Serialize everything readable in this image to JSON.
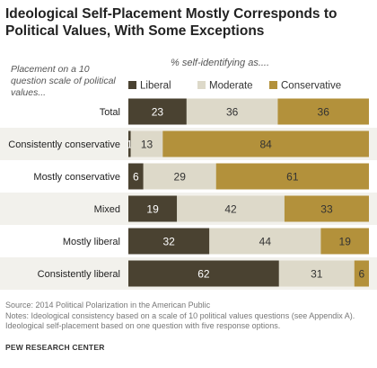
{
  "title": "Ideological Self-Placement Mostly Corresponds to Political Values, With Some Exceptions",
  "row_note": "Placement on a 10 question scale of political values...",
  "col_note": "% self-identifying as....",
  "source": "Source: 2014 Political Polarization in the American Public",
  "notes": "Notes: Ideological consistency based on a scale of 10 political values questions (see Appendix A). Ideological self-placement based on one question with five response options.",
  "footer": "PEW RESEARCH CENTER",
  "chart_data": {
    "type": "bar",
    "orientation": "horizontal",
    "stacked": true,
    "categories": [
      "Total",
      "Consistently conservative",
      "Mostly conservative",
      "Mixed",
      "Mostly liberal",
      "Consistently liberal"
    ],
    "series": [
      {
        "name": "Liberal",
        "color": "#4a4231",
        "label_color": "#ffffff",
        "values": [
          23,
          1,
          6,
          19,
          32,
          62
        ]
      },
      {
        "name": "Moderate",
        "color": "#ddd9c9",
        "label_color": "#333333",
        "values": [
          36,
          13,
          29,
          42,
          44,
          31
        ]
      },
      {
        "name": "Conservative",
        "color": "#b3913b",
        "label_color": "#333333",
        "values": [
          36,
          84,
          61,
          33,
          19,
          6
        ]
      }
    ],
    "legend_position": "top",
    "row_bands": true
  }
}
